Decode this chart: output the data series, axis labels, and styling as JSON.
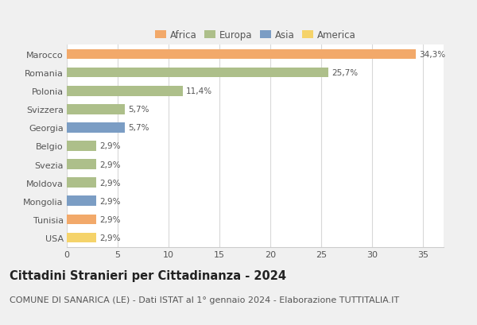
{
  "categories": [
    "Marocco",
    "Romania",
    "Polonia",
    "Svizzera",
    "Georgia",
    "Belgio",
    "Svezia",
    "Moldova",
    "Mongolia",
    "Tunisia",
    "USA"
  ],
  "values": [
    34.3,
    25.7,
    11.4,
    5.7,
    5.7,
    2.9,
    2.9,
    2.9,
    2.9,
    2.9,
    2.9
  ],
  "labels": [
    "34,3%",
    "25,7%",
    "11,4%",
    "5,7%",
    "5,7%",
    "2,9%",
    "2,9%",
    "2,9%",
    "2,9%",
    "2,9%",
    "2,9%"
  ],
  "colors": [
    "#F2A96A",
    "#ADBF8A",
    "#ADBF8A",
    "#ADBF8A",
    "#7B9DC4",
    "#ADBF8A",
    "#ADBF8A",
    "#ADBF8A",
    "#7B9DC4",
    "#F2A96A",
    "#F5D36A"
  ],
  "legend_labels": [
    "Africa",
    "Europa",
    "Asia",
    "America"
  ],
  "legend_colors": [
    "#F2A96A",
    "#ADBF8A",
    "#7B9DC4",
    "#F5D36A"
  ],
  "xlim": [
    0,
    37
  ],
  "xticks": [
    0,
    5,
    10,
    15,
    20,
    25,
    30,
    35
  ],
  "title": "Cittadini Stranieri per Cittadinanza - 2024",
  "subtitle": "COMUNE DI SANARICA (LE) - Dati ISTAT al 1° gennaio 2024 - Elaborazione TUTTITALIA.IT",
  "fig_bg_color": "#f0f0f0",
  "plot_bg_color": "#ffffff",
  "grid_color": "#d8d8d8",
  "spine_color": "#cccccc",
  "text_color": "#555555",
  "title_fontsize": 10.5,
  "subtitle_fontsize": 8,
  "label_fontsize": 7.5,
  "tick_fontsize": 8,
  "legend_fontsize": 8.5,
  "bar_height": 0.55
}
